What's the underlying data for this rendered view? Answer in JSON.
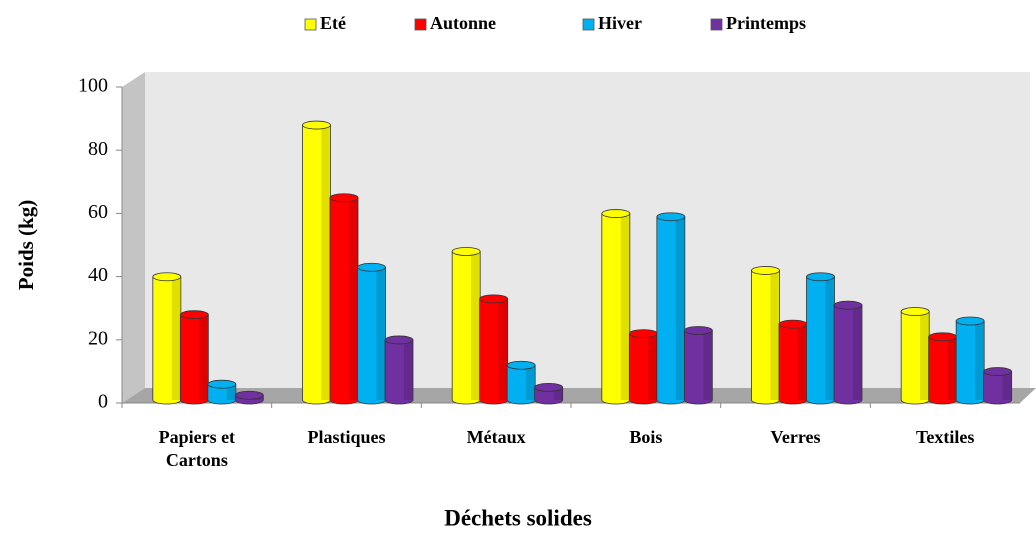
{
  "chart_data": {
    "type": "bar3d",
    "x_label": "Déchets solides",
    "y_label": "Poids (kg)",
    "categories": [
      "Papiers et Cartons",
      "Plastiques",
      "Métaux",
      "Bois",
      "Verres",
      "Textiles"
    ],
    "series": [
      {
        "name": "Eté",
        "color": "#ffff00",
        "values": [
          39,
          87,
          47,
          59,
          41,
          28
        ]
      },
      {
        "name": "Autonne",
        "color": "#ff0000",
        "values": [
          27,
          64,
          32,
          21,
          24,
          20
        ]
      },
      {
        "name": "Hiver",
        "color": "#00b0f0",
        "values": [
          5,
          42,
          11,
          58,
          39,
          25
        ]
      },
      {
        "name": "Printemps",
        "color": "#7030a0",
        "values": [
          1.5,
          19,
          4,
          22,
          30,
          9
        ]
      }
    ],
    "ylim": [
      0,
      100
    ],
    "yticks": [
      0,
      20,
      40,
      60,
      80,
      100
    ],
    "grid": false,
    "legend": "top"
  }
}
